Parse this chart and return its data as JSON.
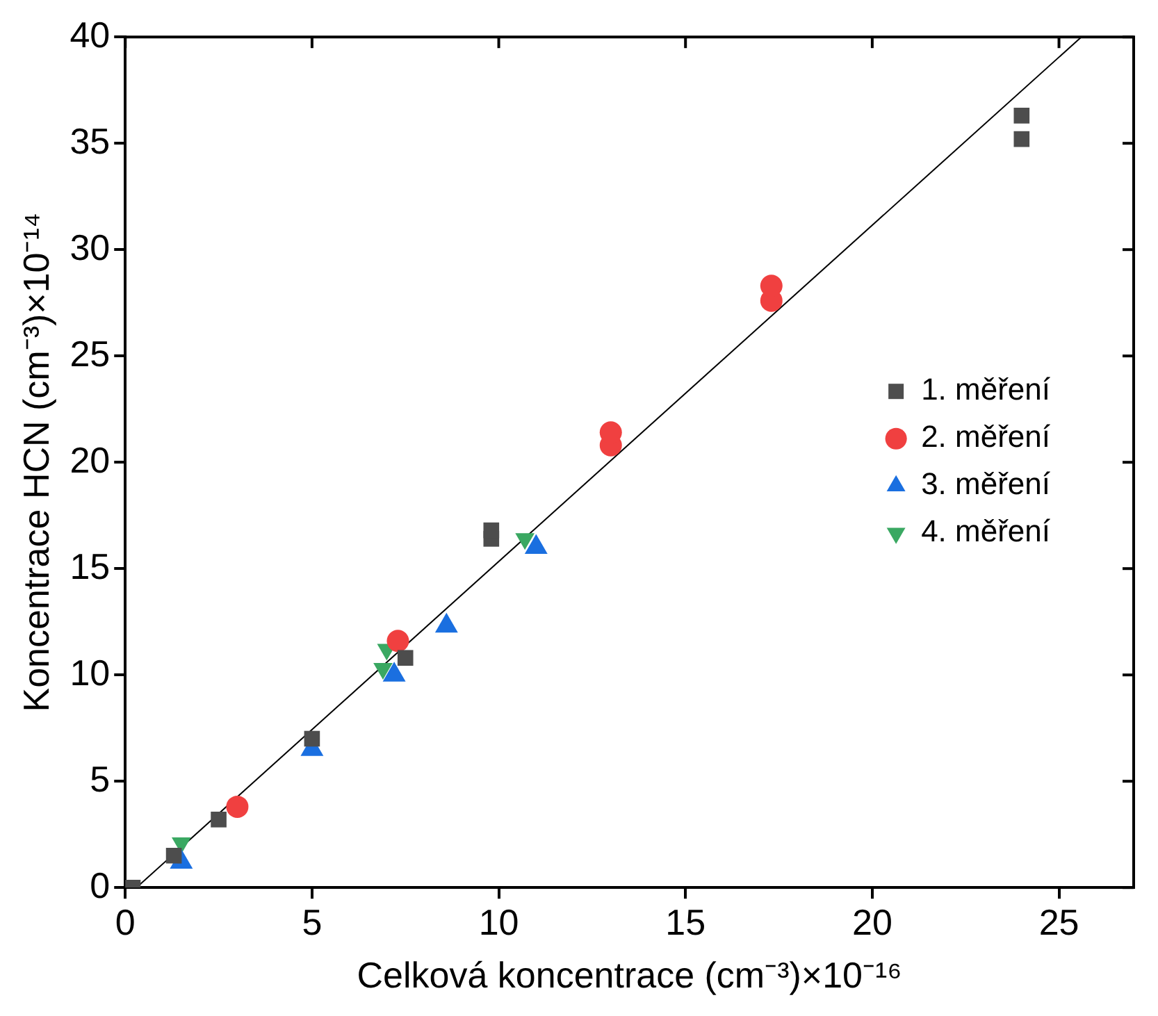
{
  "chart_data": {
    "type": "scatter",
    "xlabel": "Celková koncentrace (cm⁻³)×10⁻¹⁶",
    "ylabel": "Koncentrace HCN (cm⁻³)×10⁻¹⁴",
    "xlim": [
      0,
      27
    ],
    "xticks": [
      0,
      5,
      10,
      15,
      20,
      25
    ],
    "ylim": [
      0,
      40
    ],
    "yticks": [
      0,
      5,
      10,
      15,
      20,
      25,
      30,
      35,
      40
    ],
    "grid": false,
    "legend": "right",
    "tick_labels": "xy",
    "series": [
      {
        "name": "1. měření",
        "color": "#4d4d4d",
        "marker": "square",
        "x": [
          0.2,
          1.3,
          2.5,
          5.0,
          7.5,
          9.8,
          9.8,
          24.0,
          24.0
        ],
        "values": [
          0,
          1.5,
          3.2,
          7.0,
          10.8,
          16.4,
          16.8,
          35.2,
          36.3
        ]
      },
      {
        "name": "2. měření",
        "color": "#f04040",
        "marker": "circle",
        "x": [
          3.0,
          7.3,
          13.0,
          13.0,
          17.3,
          17.3
        ],
        "values": [
          3.8,
          11.6,
          20.8,
          21.4,
          27.6,
          28.3
        ]
      },
      {
        "name": "3. měření",
        "color": "#1a6fe0",
        "marker": "triangle",
        "x": [
          1.5,
          5.0,
          7.2,
          8.6,
          11.0
        ],
        "values": [
          1.2,
          6.5,
          10.0,
          12.3,
          16.0
        ]
      },
      {
        "name": "4. měření",
        "color": "#3aa862",
        "marker": "triangle-down",
        "x": [
          1.5,
          6.9,
          7.0,
          10.7
        ],
        "values": [
          2.1,
          10.3,
          11.2,
          16.4
        ]
      },
      {
        "type": "line",
        "color": "#000000",
        "marker": "none",
        "line_style": "solid",
        "x": [
          0.3,
          25.6
        ],
        "values": [
          0,
          40
        ]
      }
    ]
  }
}
